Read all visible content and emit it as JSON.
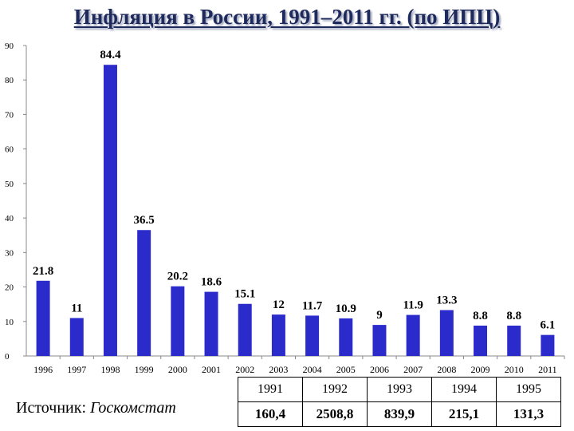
{
  "title": "Инфляция в России, 1991–2011 гг. (по ИПЦ)",
  "source": {
    "label": "Источник:",
    "value": "Госкомстат"
  },
  "table": {
    "years": [
      "1991",
      "1992",
      "1993",
      "1994",
      "1995"
    ],
    "values": [
      "160,4",
      "2508,8",
      "839,9",
      "215,1",
      "131,3"
    ]
  },
  "colors": {
    "bar": "#2b2bcc",
    "axis": "#888888"
  },
  "chart_data": {
    "type": "bar",
    "title": "Инфляция в России, 1991–2011 гг. (по ИПЦ)",
    "xlabel": "",
    "ylabel": "",
    "ylim": [
      0,
      90
    ],
    "yticks": [
      0,
      10,
      20,
      30,
      40,
      50,
      60,
      70,
      80,
      90
    ],
    "grid": false,
    "categories": [
      "1996",
      "1997",
      "1998",
      "1999",
      "2000",
      "2001",
      "2002",
      "2003",
      "2004",
      "2005",
      "2006",
      "2007",
      "2008",
      "2009",
      "2010",
      "2011"
    ],
    "values": [
      21.8,
      11,
      84.4,
      36.5,
      20.2,
      18.6,
      15.1,
      12,
      11.7,
      10.9,
      9,
      11.9,
      13.3,
      8.8,
      8.8,
      6.1
    ],
    "labels": [
      "21.8",
      "11",
      "84.4",
      "36.5",
      "20.2",
      "18.6",
      "15.1",
      "12",
      "11.7",
      "10.9",
      "9",
      "11.9",
      "13.3",
      "8.8",
      "8.8",
      "6.1"
    ]
  }
}
